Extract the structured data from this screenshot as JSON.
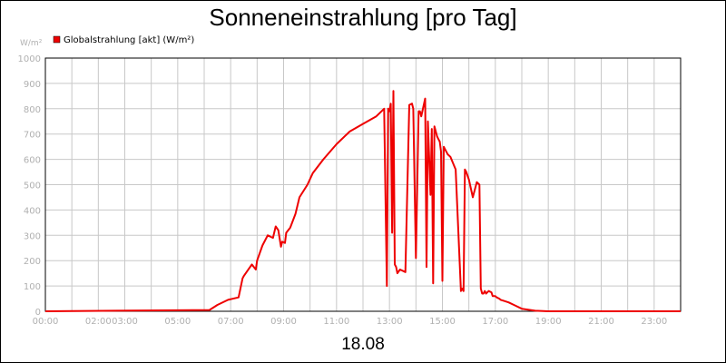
{
  "chart_data": {
    "type": "line",
    "title": "Sonneneinstrahlung [pro Tag]",
    "ylabel": "W/m²",
    "xlabel": "18.08",
    "ylim": [
      0,
      1000
    ],
    "xlim": [
      "00:00",
      "24:00"
    ],
    "y_ticks": [
      "0",
      "100",
      "200",
      "300",
      "400",
      "500",
      "600",
      "700",
      "800",
      "900",
      "1000"
    ],
    "x_ticks": [
      {
        "label": "00:00",
        "hour": 0
      },
      {
        "label": "02:00",
        "hour": 2
      },
      {
        "label": "03:00",
        "hour": 3
      },
      {
        "label": "05:00",
        "hour": 5
      },
      {
        "label": "07:00",
        "hour": 7
      },
      {
        "label": "09:00",
        "hour": 9
      },
      {
        "label": "11:00",
        "hour": 11
      },
      {
        "label": "13:00",
        "hour": 13
      },
      {
        "label": "15:00",
        "hour": 15
      },
      {
        "label": "17:00",
        "hour": 17
      },
      {
        "label": "19:00",
        "hour": 19
      },
      {
        "label": "21:00",
        "hour": 21
      },
      {
        "label": "23:00",
        "hour": 23
      }
    ],
    "grid": true,
    "legend_position": "top-left",
    "series": [
      {
        "name": "Globalstrahlung [akt] (W/m²)",
        "color": "#ee0000",
        "x": [
          0,
          6.2,
          6.5,
          6.9,
          7.3,
          7.45,
          7.5,
          7.8,
          7.95,
          8.0,
          8.2,
          8.4,
          8.6,
          8.7,
          8.8,
          8.9,
          8.95,
          9.05,
          9.1,
          9.25,
          9.45,
          9.6,
          9.9,
          10.1,
          10.5,
          11.0,
          11.5,
          12.0,
          12.5,
          12.8,
          12.9,
          12.95,
          13.0,
          13.05,
          13.1,
          13.15,
          13.2,
          13.25,
          13.3,
          13.4,
          13.6,
          13.75,
          13.85,
          13.9,
          14.0,
          14.1,
          14.15,
          14.2,
          14.35,
          14.4,
          14.45,
          14.55,
          14.6,
          14.65,
          14.7,
          14.75,
          14.8,
          14.85,
          14.9,
          14.95,
          15.0,
          15.05,
          15.1,
          15.2,
          15.3,
          15.5,
          15.7,
          15.75,
          15.8,
          15.85,
          15.9,
          16.0,
          16.15,
          16.3,
          16.4,
          16.45,
          16.5,
          16.55,
          16.6,
          16.65,
          16.75,
          16.85,
          16.9,
          16.95,
          17.0,
          17.05,
          17.15,
          17.2,
          17.3,
          17.5,
          17.7,
          18.0,
          18.5,
          19.0,
          19.5,
          20.0,
          20.3,
          20.6,
          20.8,
          24.0
        ],
        "y": [
          0,
          5,
          25,
          45,
          55,
          130,
          140,
          185,
          165,
          200,
          260,
          300,
          290,
          335,
          320,
          255,
          275,
          270,
          310,
          330,
          385,
          450,
          500,
          545,
          600,
          660,
          710,
          740,
          770,
          800,
          100,
          800,
          790,
          820,
          310,
          870,
          185,
          175,
          150,
          165,
          155,
          815,
          820,
          800,
          210,
          790,
          790,
          770,
          840,
          175,
          750,
          460,
          720,
          110,
          730,
          710,
          690,
          680,
          670,
          630,
          120,
          650,
          640,
          620,
          610,
          560,
          80,
          90,
          80,
          560,
          550,
          520,
          450,
          510,
          500,
          90,
          70,
          70,
          80,
          70,
          80,
          75,
          60,
          60,
          60,
          55,
          50,
          45,
          42,
          35,
          25,
          10,
          2,
          0,
          0,
          0,
          0,
          0,
          0,
          0
        ]
      }
    ]
  }
}
